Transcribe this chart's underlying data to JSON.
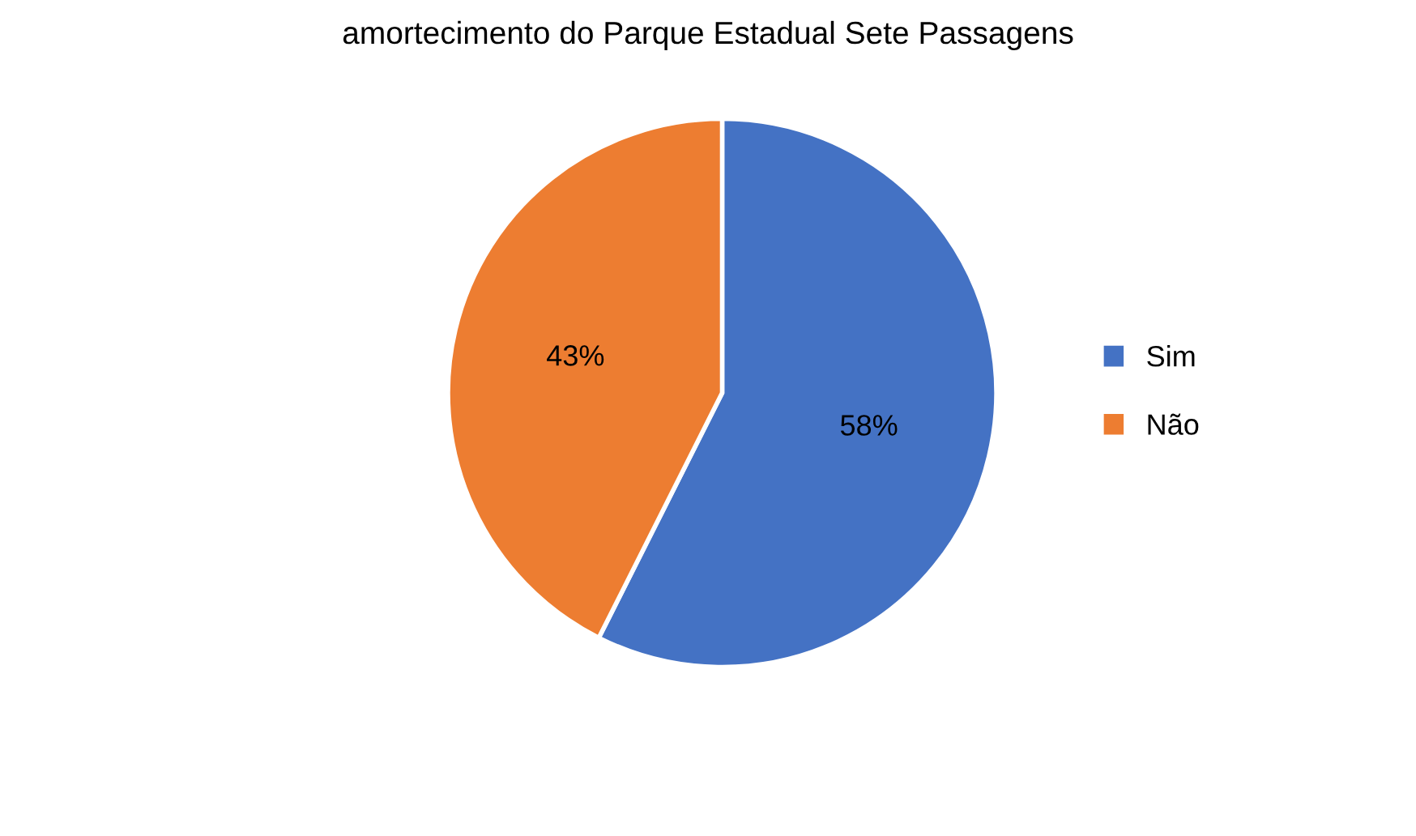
{
  "chart_data": {
    "type": "pie",
    "title": "amortecimento do Parque Estadual Sete Passagens",
    "categories": [
      "Sim",
      "Não"
    ],
    "values": [
      58,
      43
    ],
    "colors": [
      "#4472c4",
      "#ed7d31"
    ],
    "value_labels": [
      "58%",
      "43%"
    ],
    "legend": "right"
  }
}
